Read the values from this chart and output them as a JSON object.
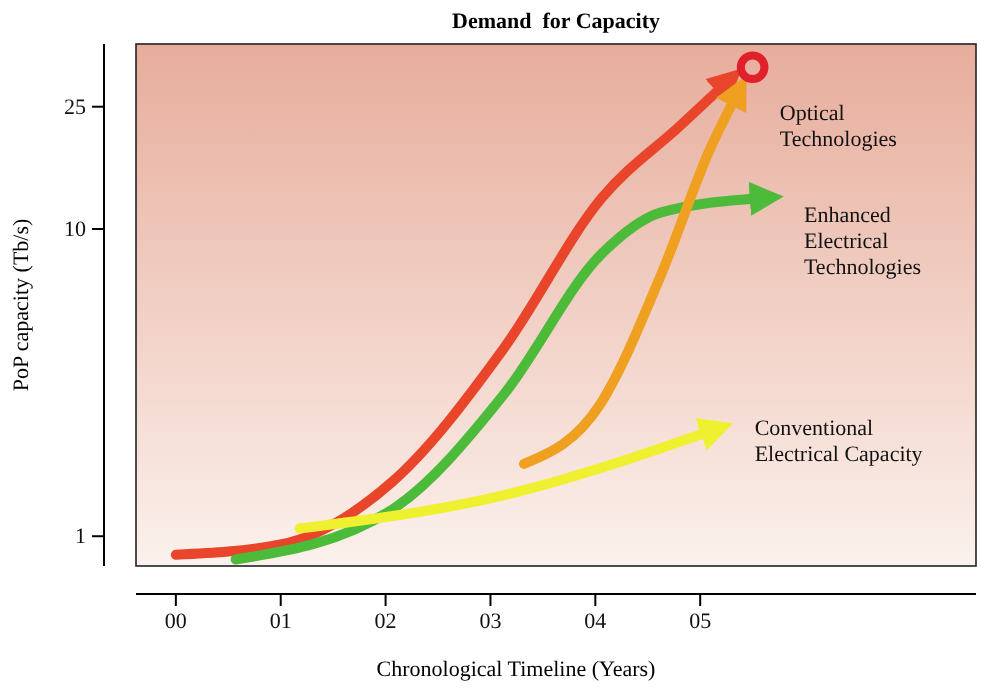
{
  "chart_data": {
    "type": "line",
    "title": "Demand  for Capacity",
    "xlabel": "Chronological Timeline (Years)",
    "ylabel": "PoP capacity (Tb/s)",
    "log": "y",
    "grid": false,
    "xlim": [
      -0.38,
      7.63
    ],
    "xticks": [
      {
        "value": 0,
        "label": "00"
      },
      {
        "value": 1,
        "label": "01"
      },
      {
        "value": 2,
        "label": "02"
      },
      {
        "value": 3,
        "label": "03"
      },
      {
        "value": 4,
        "label": "04"
      },
      {
        "value": 5,
        "label": "05"
      }
    ],
    "ylim": [
      0.8,
      40
    ],
    "yticks": [
      1,
      10,
      25
    ],
    "series": [
      {
        "color": "#e8452a",
        "x": [
          0,
          1,
          2.06,
          3.13,
          4.06,
          4.81,
          5.23
        ],
        "values": [
          0.87,
          0.94,
          1.5,
          4.1,
          12.6,
          21.7,
          29.5
        ]
      },
      {
        "name": "Enhanced Electrical Technologies",
        "color": "#4cbb3a",
        "x": [
          0.57,
          2.06,
          3.13,
          4.06,
          4.62,
          5.57
        ],
        "values": [
          0.84,
          1.22,
          2.9,
          8.3,
          11.3,
          12.6
        ]
      },
      {
        "name": "Optical Technologies",
        "color": "#f0a020",
        "x": [
          3.32,
          4.05,
          4.62,
          5.1,
          5.34
        ],
        "values": [
          1.72,
          2.7,
          7.0,
          18.4,
          27
        ]
      },
      {
        "name": "Conventional Electrical Capacity",
        "color": "#eef030",
        "x": [
          1.18,
          3.09,
          5.1
        ],
        "values": [
          1.06,
          1.35,
          2.2
        ]
      },
      {
        "type": "scatter",
        "marker": "circle",
        "color": "#e0202a",
        "x": [
          5.5
        ],
        "values": [
          33.6
        ]
      }
    ]
  }
}
